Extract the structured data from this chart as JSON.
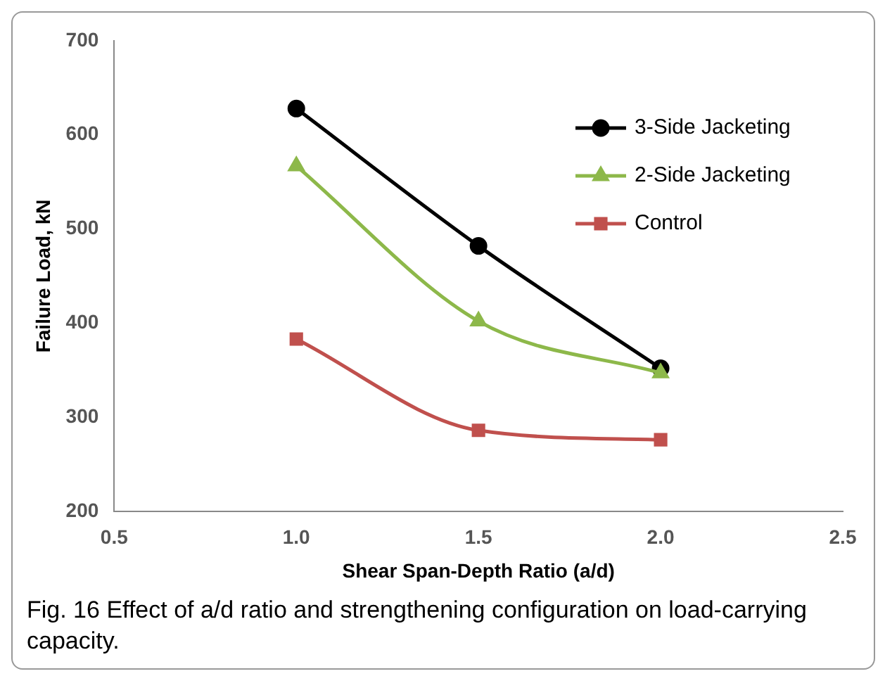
{
  "chart_data": {
    "type": "line",
    "xlabel": "Shear Span-Depth Ratio (a/d)",
    "ylabel": "Failure Load, kN",
    "x": [
      1.0,
      1.5,
      2.0
    ],
    "series": [
      {
        "name": "3-Side Jacketing",
        "color": "#000000",
        "marker": "circle",
        "values": [
          628,
          482,
          352
        ]
      },
      {
        "name": "2-Side Jacketing",
        "color": "#8db84a",
        "marker": "triangle",
        "values": [
          567,
          402,
          347
        ]
      },
      {
        "name": "Control",
        "color": "#c0504d",
        "marker": "square",
        "values": [
          383,
          286,
          276
        ]
      }
    ],
    "xlim": [
      0.5,
      2.5
    ],
    "xticks": [
      {
        "value": 0.5,
        "label": "0.5"
      },
      {
        "value": 1,
        "label": "1.0"
      },
      {
        "value": 1.5,
        "label": "1.5"
      },
      {
        "value": 2,
        "label": "2.0"
      },
      {
        "value": 2.5,
        "label": "2.5"
      }
    ],
    "ylim": [
      200,
      700
    ],
    "yticks": [
      200,
      300,
      400,
      500,
      600,
      700
    ],
    "grid": false,
    "legend": "top right",
    "annotations": [
      "Fig. 16  Effect of a/d ratio and strengthening configuration on load-carrying capacity."
    ]
  }
}
